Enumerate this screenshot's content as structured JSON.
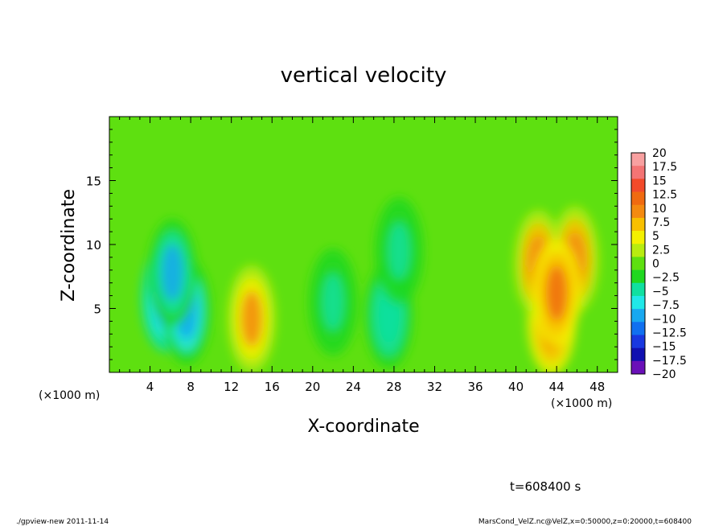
{
  "chart_data": {
    "type": "heatmap",
    "title": "vertical velocity",
    "xlabel": "X-coordinate",
    "ylabel": "Z-coordinate",
    "x_unit_label": "(×1000 m)",
    "x_unit_label_right": "(×1000 m)",
    "xlim": [
      0,
      50
    ],
    "ylim": [
      0,
      20
    ],
    "x_ticks": [
      4,
      8,
      12,
      16,
      20,
      24,
      28,
      32,
      36,
      40,
      44,
      48
    ],
    "y_ticks": [
      5,
      10,
      15
    ],
    "x_tick_labels": [
      "4",
      "8",
      "12",
      "16",
      "20",
      "24",
      "28",
      "32",
      "36",
      "40",
      "44",
      "48"
    ],
    "y_tick_labels": [
      "5",
      "10",
      "15"
    ],
    "background_value": 0.8,
    "features": [
      {
        "x": 5.5,
        "z": 5.8,
        "value": -11.5
      },
      {
        "x": 7.6,
        "z": 4.8,
        "value": -10.5
      },
      {
        "x": 6.2,
        "z": 7.8,
        "value": -9
      },
      {
        "x": 14.0,
        "z": 4.2,
        "value": 9.5
      },
      {
        "x": 22.0,
        "z": 5.5,
        "value": -5
      },
      {
        "x": 27.5,
        "z": 4.5,
        "value": -6
      },
      {
        "x": 28.5,
        "z": 9.5,
        "value": -4
      },
      {
        "x": 43.5,
        "z": 4.0,
        "value": 12.5
      },
      {
        "x": 42.2,
        "z": 8.5,
        "value": 10.5
      },
      {
        "x": 45.8,
        "z": 8.8,
        "value": 10.5
      },
      {
        "x": 44.0,
        "z": 6.2,
        "value": 12
      }
    ],
    "colorbar": {
      "labels": [
        "20",
        "17.5",
        "15",
        "12.5",
        "10",
        "7.5",
        "5",
        "2.5",
        "0",
        "−2.5",
        "−5",
        "−7.5",
        "−10",
        "−12.5",
        "−15",
        "−17.5",
        "−20"
      ],
      "colors": [
        "#f8a0a0",
        "#f47474",
        "#f24a2a",
        "#f06a10",
        "#f48a10",
        "#f8c000",
        "#f4f000",
        "#b8ec10",
        "#5ee010",
        "#20d820",
        "#10e0a0",
        "#20e8e8",
        "#18a8f0",
        "#1070f0",
        "#1838e0",
        "#1010b0",
        "#6a10b8"
      ]
    },
    "footer": {
      "time_label": "t=608400 s",
      "left": "./gpview-new  2011-11-14",
      "right": "MarsCond_VelZ.nc@VelZ,x=0:50000,z=0:20000,t=608400"
    }
  }
}
